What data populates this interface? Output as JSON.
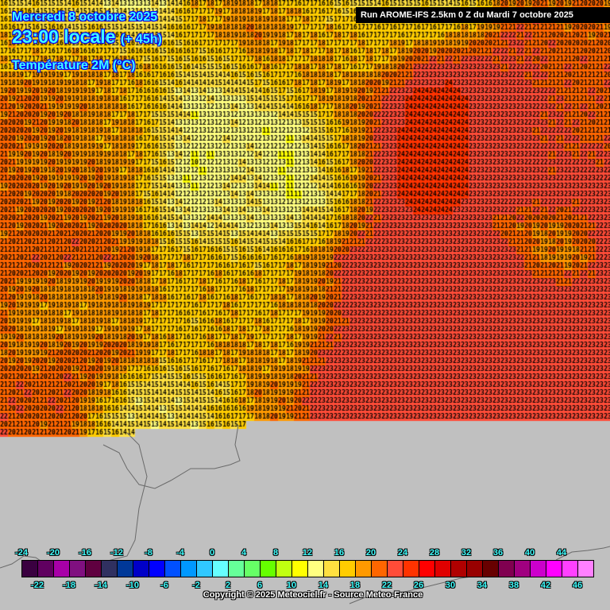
{
  "header": {
    "date": "Mercredi 8 octobre 2025",
    "time": "23:00 locale",
    "lead": "(+ 45h)",
    "parameter": "Température 2M (°C)"
  },
  "run_banner": "Run AROME-IFS 2.5km 0 Z du Mardi 7 octobre 2025",
  "copyright": "Copyright © 2025 Meteociel.fr - Source Meteo-France",
  "legend": {
    "top_labels": [
      "-24",
      "-20",
      "-16",
      "-12",
      "-8",
      "-4",
      "0",
      "4",
      "8",
      "12",
      "16",
      "20",
      "24",
      "28",
      "32",
      "36",
      "40",
      "44"
    ],
    "bottom_labels": [
      "-22",
      "-18",
      "-14",
      "-10",
      "-6",
      "-2",
      "2",
      "6",
      "10",
      "14",
      "18",
      "22",
      "26",
      "30",
      "34",
      "38",
      "42",
      "46"
    ],
    "min": -24,
    "step": 2,
    "colors": [
      "#3a0040",
      "#600060",
      "#a800a8",
      "#801080",
      "#600040",
      "#303060",
      "#003898",
      "#0000c8",
      "#0000ff",
      "#0050ff",
      "#0098ff",
      "#30c8ff",
      "#66ffff",
      "#66ff99",
      "#66ff66",
      "#66ff00",
      "#c0ff10",
      "#ffff00",
      "#ffff80",
      "#ffe040",
      "#ffcc00",
      "#ff9900",
      "#ff6600",
      "#ff4c38",
      "#ff3300",
      "#ff0000",
      "#e00000",
      "#b00000",
      "#980000",
      "#680000",
      "#800050",
      "#a00080",
      "#cc00cc",
      "#ff00ff",
      "#ff40ff",
      "#ff80ff"
    ]
  },
  "temperature_field": {
    "rows": [
      [
        15,
        15,
        15,
        14,
        13,
        13,
        17,
        18,
        18,
        17,
        16,
        15,
        15,
        15,
        15,
        16,
        20,
        20,
        20,
        20
      ],
      [
        17,
        16,
        15,
        16,
        15,
        15,
        17,
        18,
        19,
        18,
        17,
        17,
        17,
        17,
        17,
        19,
        22,
        21,
        20,
        20
      ],
      [
        17,
        18,
        18,
        18,
        17,
        16,
        15,
        15,
        17,
        17,
        18,
        17,
        18,
        22,
        23,
        23,
        22,
        21,
        21,
        21
      ],
      [
        20,
        20,
        19,
        18,
        17,
        15,
        13,
        13,
        14,
        16,
        18,
        19,
        22,
        24,
        24,
        23,
        23,
        22,
        21,
        21
      ],
      [
        20,
        20,
        19,
        18,
        18,
        15,
        12,
        13,
        12,
        12,
        15,
        18,
        23,
        24,
        24,
        23,
        23,
        22,
        21,
        21
      ],
      [
        20,
        19,
        19,
        19,
        18,
        15,
        11,
        13,
        13,
        11,
        15,
        18,
        23,
        24,
        24,
        23,
        23,
        22,
        22,
        22
      ],
      [
        20,
        20,
        19,
        20,
        18,
        14,
        12,
        13,
        14,
        11,
        13,
        17,
        23,
        24,
        24,
        23,
        23,
        23,
        23,
        23
      ],
      [
        20,
        20,
        20,
        20,
        19,
        15,
        13,
        14,
        13,
        14,
        15,
        19,
        23,
        23,
        23,
        23,
        20,
        19,
        20,
        23
      ],
      [
        21,
        21,
        21,
        21,
        20,
        17,
        17,
        16,
        16,
        17,
        19,
        23,
        23,
        23,
        23,
        23,
        23,
        19,
        19,
        23
      ],
      [
        20,
        19,
        18,
        19,
        19,
        17,
        17,
        17,
        17,
        18,
        19,
        23,
        23,
        23,
        23,
        23,
        23,
        23,
        23,
        23
      ],
      [
        20,
        18,
        18,
        18,
        18,
        17,
        16,
        17,
        17,
        17,
        19,
        23,
        23,
        23,
        23,
        23,
        23,
        23,
        23,
        23
      ],
      [
        19,
        19,
        20,
        20,
        20,
        17,
        17,
        18,
        18,
        17,
        22,
        23,
        23,
        23,
        23,
        23,
        23,
        23,
        23,
        23
      ],
      [
        21,
        21,
        21,
        19,
        15,
        14,
        15,
        15,
        19,
        19,
        23,
        23,
        23,
        23,
        23,
        23,
        23,
        23,
        23,
        23
      ],
      [
        21,
        20,
        21,
        16,
        14,
        14,
        14,
        16,
        18,
        20,
        23,
        23,
        23,
        23,
        23,
        23,
        23,
        23,
        23,
        23
      ]
    ]
  }
}
